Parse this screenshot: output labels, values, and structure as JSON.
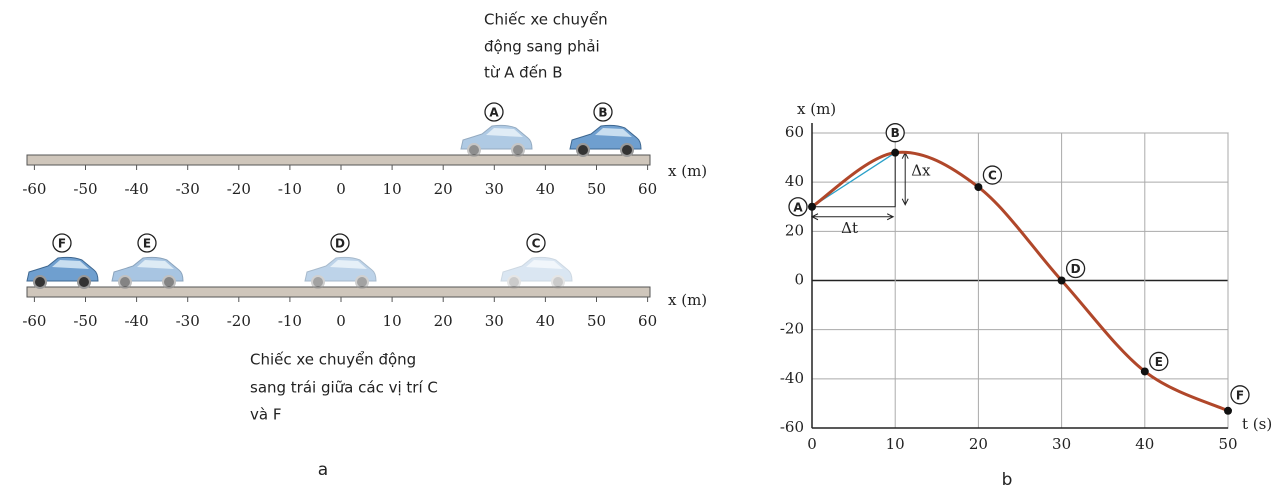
{
  "figure_a": {
    "top_caption": [
      "Chiếc xe chuyển",
      "động sang phải",
      "từ A đến B"
    ],
    "bottom_caption": [
      "Chiếc xe chuyển động",
      "sang trái giữa các vị trí C",
      "và F"
    ],
    "axis_label": "x (m)",
    "ticks": [
      -60,
      -50,
      -40,
      -30,
      -20,
      -10,
      0,
      10,
      20,
      30,
      40,
      50,
      60
    ],
    "top_markers": [
      "A",
      "B"
    ],
    "bottom_markers": [
      "F",
      "E",
      "D",
      "C"
    ],
    "label": "a"
  },
  "chart_data": {
    "type": "line",
    "x_label": "t (s)",
    "y_label": "x (m)",
    "x": [
      0,
      10,
      20,
      30,
      40,
      50
    ],
    "series": [
      {
        "color": "#b0472a",
        "values": [
          30,
          52,
          38,
          0,
          -37,
          -53
        ],
        "point_labels": [
          "A",
          "B",
          "C",
          "D",
          "E",
          "F"
        ]
      }
    ],
    "xlim": [
      0,
      50
    ],
    "ylim": [
      -60,
      60
    ],
    "xticks": [
      0,
      10,
      20,
      30,
      40,
      50
    ],
    "yticks": [
      -60,
      -40,
      -20,
      0,
      20,
      40,
      60
    ],
    "grid": true,
    "annotations": [
      "Δx",
      "Δt"
    ],
    "label": "b"
  }
}
